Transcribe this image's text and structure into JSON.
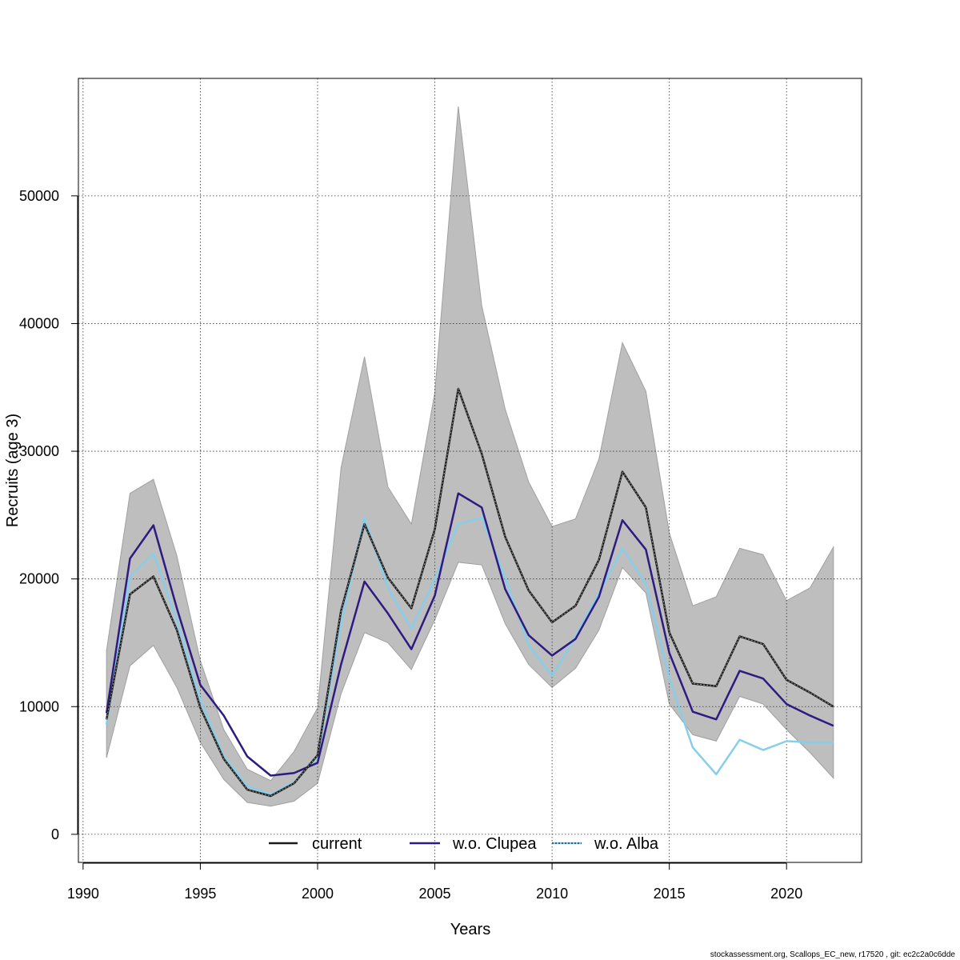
{
  "chart_data": {
    "type": "line",
    "title": "",
    "xlabel": "Years",
    "ylabel": "Recruits (age 3)",
    "xlim": [
      1989.8,
      2023.2
    ],
    "ylim": [
      -2200,
      59200
    ],
    "x_ticks": [
      1990,
      1995,
      2000,
      2005,
      2010,
      2015,
      2020
    ],
    "y_ticks": [
      0,
      10000,
      20000,
      30000,
      40000,
      50000
    ],
    "grid": true,
    "legend_position": "bottom",
    "x": [
      1991,
      1992,
      1993,
      1994,
      1995,
      1996,
      1997,
      1998,
      1999,
      2000,
      2001,
      2002,
      2003,
      2004,
      2005,
      2006,
      2007,
      2008,
      2009,
      2010,
      2011,
      2012,
      2013,
      2014,
      2015,
      2016,
      2017,
      2018,
      2019,
      2020,
      2021,
      2022
    ],
    "band": {
      "name": "confidence interval",
      "color": "#bebebe",
      "lower": [
        6000,
        13200,
        14800,
        11500,
        7200,
        4300,
        2500,
        2200,
        2600,
        4000,
        11000,
        15800,
        15000,
        12900,
        16800,
        21300,
        21100,
        16500,
        13300,
        11500,
        13000,
        16000,
        20900,
        18900,
        10200,
        7800,
        7300,
        10800,
        10200,
        8200,
        6400,
        4400
      ],
      "upper": [
        14400,
        26700,
        27800,
        21800,
        13600,
        8200,
        5100,
        4200,
        6500,
        9900,
        28700,
        37400,
        27200,
        24300,
        34600,
        57000,
        41400,
        33300,
        27600,
        24100,
        24700,
        29400,
        38500,
        34700,
        23600,
        17900,
        18600,
        22400,
        21900,
        18300,
        19300,
        22500
      ]
    },
    "series": [
      {
        "name": "current",
        "color": "#1a1a1a",
        "values": [
          9000,
          18800,
          20200,
          16000,
          9900,
          5900,
          3500,
          3000,
          4000,
          6200,
          17500,
          24300,
          20100,
          17700,
          23900,
          34900,
          29800,
          23300,
          19100,
          16600,
          17900,
          21500,
          28400,
          25600,
          15800,
          11800,
          11600,
          15500,
          14900,
          12100,
          11100,
          10000
        ]
      },
      {
        "name": "w.o. Clupea",
        "color": "#2e1a80",
        "values": [
          9500,
          21600,
          24200,
          17700,
          11700,
          9300,
          6100,
          4600,
          4800,
          5600,
          13300,
          19800,
          17300,
          14500,
          18700,
          26700,
          25600,
          19200,
          15600,
          14000,
          15300,
          18600,
          24600,
          22300,
          14200,
          9600,
          9000,
          12800,
          12200,
          10200,
          9300,
          8500
        ]
      },
      {
        "name": "w.o. Alba",
        "color": "#87ceeb",
        "values": [
          8600,
          20200,
          22000,
          16700,
          10500,
          6100,
          3800,
          3100,
          4100,
          6000,
          16500,
          24800,
          19300,
          16100,
          20000,
          24300,
          24800,
          20100,
          14800,
          12400,
          15500,
          18900,
          22400,
          19600,
          12200,
          6800,
          4700,
          7400,
          6600,
          7300,
          7200,
          7200
        ]
      }
    ],
    "legend": [
      "current",
      "w.o. Clupea",
      "w.o. Alba"
    ]
  },
  "footer": "stockassessment.org, Scallops_EC_new, r17520 , git: ec2c2a0c6dde"
}
